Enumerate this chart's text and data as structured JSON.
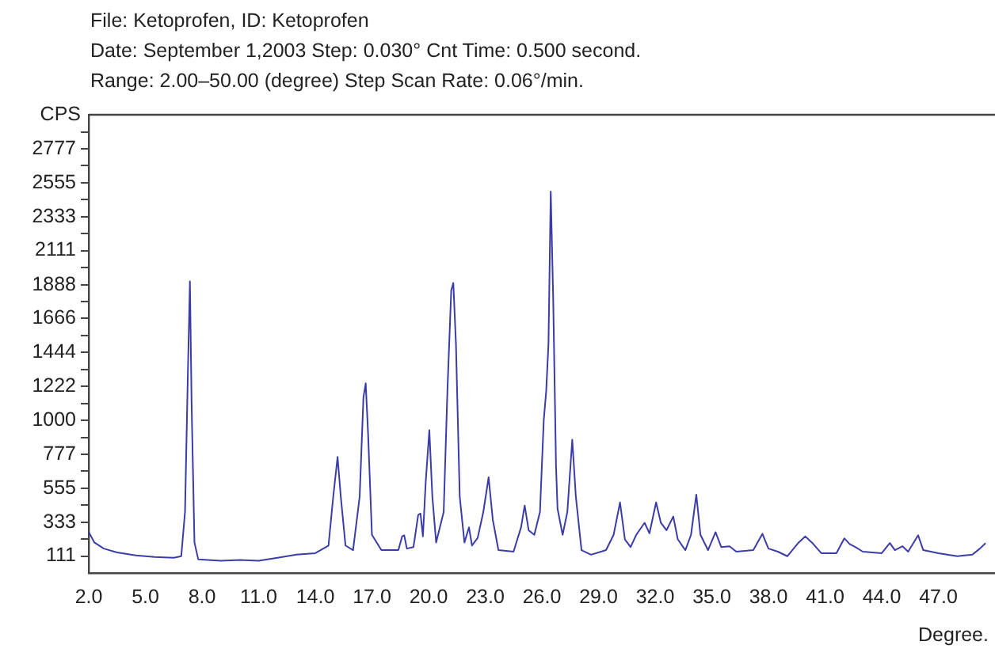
{
  "chart_data": {
    "type": "line",
    "title": "File: Ketoprofen, ID: Ketoprofen",
    "subtitle": "Date: September 1,2003 Step: 0.030° Cnt Time: 0.500 second.",
    "annotations": [
      "Range: 2.00–50.00 (degree) Step Scan Rate: 0.06°/min."
    ],
    "xlabel": "Degree.",
    "ylabel": "CPS",
    "grid": false,
    "marker": "none",
    "legend": false,
    "xlim": [
      2,
      50
    ],
    "xticks": [
      {
        "value": 2,
        "label": "2.0"
      },
      {
        "value": 5,
        "label": "5.0"
      },
      {
        "value": 8,
        "label": "8.0"
      },
      {
        "value": 11,
        "label": "11.0"
      },
      {
        "value": 14,
        "label": "14.0"
      },
      {
        "value": 17,
        "label": "17.0"
      },
      {
        "value": 20,
        "label": "20.0"
      },
      {
        "value": 23,
        "label": "23.0"
      },
      {
        "value": 26,
        "label": "26.0"
      },
      {
        "value": 29,
        "label": "29.0"
      },
      {
        "value": 32,
        "label": "32.0"
      },
      {
        "value": 35,
        "label": "35.0"
      },
      {
        "value": 38,
        "label": "38.0"
      },
      {
        "value": 41,
        "label": "41.0"
      },
      {
        "value": 44,
        "label": "44.0"
      },
      {
        "value": 47,
        "label": "47.0"
      }
    ],
    "ylim": [
      0,
      3000
    ],
    "yticks": [
      111,
      {
        "value": 222,
        "label": null
      },
      333,
      {
        "value": 444,
        "label": null
      },
      555,
      {
        "value": 666,
        "label": null
      },
      777,
      {
        "value": 888,
        "label": null
      },
      1000,
      {
        "value": 1111,
        "label": null
      },
      1222,
      {
        "value": 1333,
        "label": null
      },
      1444,
      {
        "value": 1555,
        "label": null
      },
      1666,
      {
        "value": 1777,
        "label": null
      },
      1888,
      {
        "value": 2000,
        "label": null
      },
      2111,
      {
        "value": 2222,
        "label": null
      },
      2333,
      {
        "value": 2444,
        "label": null
      },
      2555,
      {
        "value": 2666,
        "label": null
      },
      2777,
      {
        "value": 2888,
        "label": null
      }
    ],
    "series": [
      {
        "color": "#3c3ca8",
        "x": [
          2,
          2.3,
          2.8,
          3.5,
          4.5,
          5.5,
          6.5,
          6.9,
          7.1,
          7.25,
          7.36,
          7.45,
          7.6,
          7.8,
          9,
          10,
          11,
          12,
          13,
          14,
          14.7,
          14.95,
          15.18,
          15.35,
          15.6,
          16,
          16.35,
          16.55,
          16.67,
          16.8,
          17,
          17.5,
          18.4,
          18.6,
          18.71,
          18.85,
          19.2,
          19.45,
          19.57,
          19.7,
          19.85,
          20.04,
          20.2,
          20.4,
          20.8,
          21,
          21.2,
          21.31,
          21.45,
          21.65,
          21.9,
          22.14,
          22.3,
          22.6,
          22.9,
          23.18,
          23.4,
          23.7,
          24.5,
          24.9,
          25.09,
          25.3,
          25.6,
          25.9,
          26.1,
          26.23,
          26.35,
          26.47,
          26.6,
          26.75,
          26.83,
          27.1,
          27.35,
          27.61,
          27.8,
          28.1,
          28.6,
          29.4,
          29.8,
          30.14,
          30.4,
          30.7,
          31,
          31.44,
          31.7,
          32.05,
          32.3,
          32.6,
          32.96,
          33.2,
          33.6,
          33.9,
          34.18,
          34.4,
          34.8,
          35.2,
          35.5,
          35.94,
          36.3,
          37.2,
          37.68,
          38,
          38.5,
          39,
          39.6,
          39.95,
          40.3,
          40.8,
          41.6,
          42.02,
          42.3,
          42.6,
          43,
          44,
          44.43,
          44.7,
          45.1,
          45.4,
          45.93,
          46.2,
          47,
          48,
          48.8,
          49.2,
          49.5
        ],
        "values": [
          268,
          200,
          160,
          135,
          115,
          105,
          100,
          110,
          400,
          1300,
          1909,
          1100,
          200,
          90,
          80,
          85,
          80,
          100,
          120,
          130,
          180,
          500,
          760,
          500,
          180,
          150,
          500,
          1150,
          1242,
          900,
          250,
          150,
          150,
          240,
          247,
          160,
          170,
          380,
          390,
          240,
          600,
          935,
          500,
          200,
          400,
          1200,
          1850,
          1899,
          1500,
          500,
          200,
          299,
          180,
          230,
          400,
          627,
          350,
          150,
          140,
          300,
          442,
          280,
          250,
          400,
          1000,
          1191,
          1500,
          2497,
          1800,
          700,
          421,
          250,
          400,
          873,
          500,
          150,
          120,
          150,
          250,
          462,
          220,
          170,
          250,
          329,
          260,
          462,
          330,
          280,
          370,
          220,
          150,
          250,
          513,
          250,
          150,
          267,
          170,
          175,
          140,
          150,
          257,
          160,
          140,
          110,
          200,
          240,
          200,
          130,
          130,
          227,
          190,
          170,
          140,
          130,
          196,
          150,
          175,
          140,
          247,
          150,
          130,
          110,
          120,
          160,
          196
        ]
      }
    ]
  }
}
